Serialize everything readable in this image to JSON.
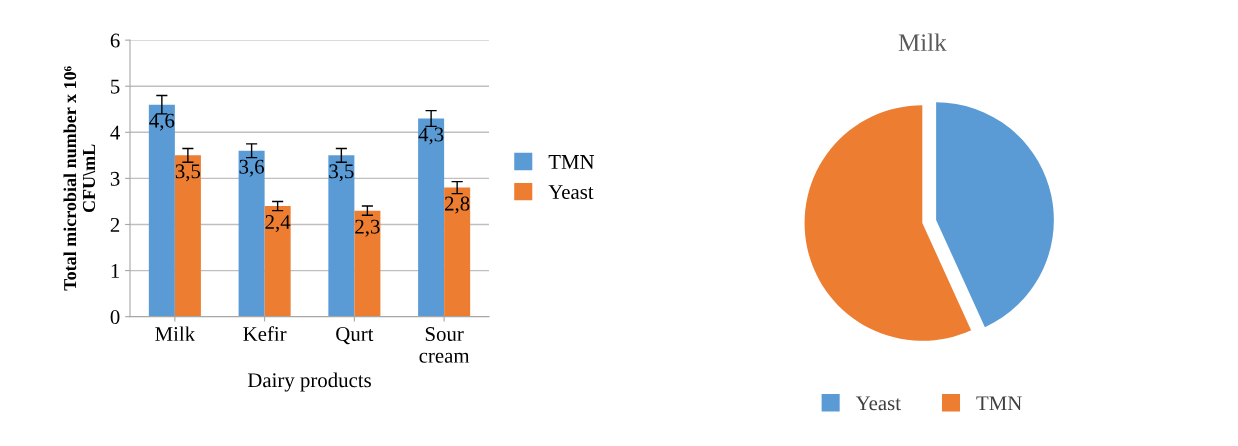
{
  "chart_data": [
    {
      "type": "bar",
      "xlabel": "Dairy products",
      "ylabel": "Total microbial number x 10⁶\nCFU\\mL",
      "categories": [
        "Milk",
        "Kefir",
        "Qurt",
        "Sour\ncream"
      ],
      "series": [
        {
          "name": "TMN",
          "color": "#5b9bd5",
          "values": [
            4.6,
            3.6,
            3.5,
            4.3
          ],
          "errors": [
            0.2,
            0.15,
            0.15,
            0.17
          ],
          "value_labels": [
            "4,6",
            "3,6",
            "3,5",
            "4,3"
          ]
        },
        {
          "name": "Yeast",
          "color": "#ed7d31",
          "values": [
            3.5,
            2.4,
            2.3,
            2.8
          ],
          "errors": [
            0.15,
            0.1,
            0.1,
            0.13
          ],
          "value_labels": [
            "3,5",
            "2,4",
            "2,3",
            "2,8"
          ]
        }
      ],
      "ylim": [
        0,
        6
      ],
      "yticks": [
        0,
        1,
        2,
        3,
        4,
        5,
        6
      ],
      "grid": "y",
      "legend": "right"
    },
    {
      "type": "pie",
      "title": "Milk",
      "categories": [
        "Yeast",
        "TMN"
      ],
      "values": [
        43.2,
        56.8
      ],
      "colors": [
        "#5b9bd5",
        "#ed7d31"
      ],
      "legend": "bottom"
    }
  ]
}
